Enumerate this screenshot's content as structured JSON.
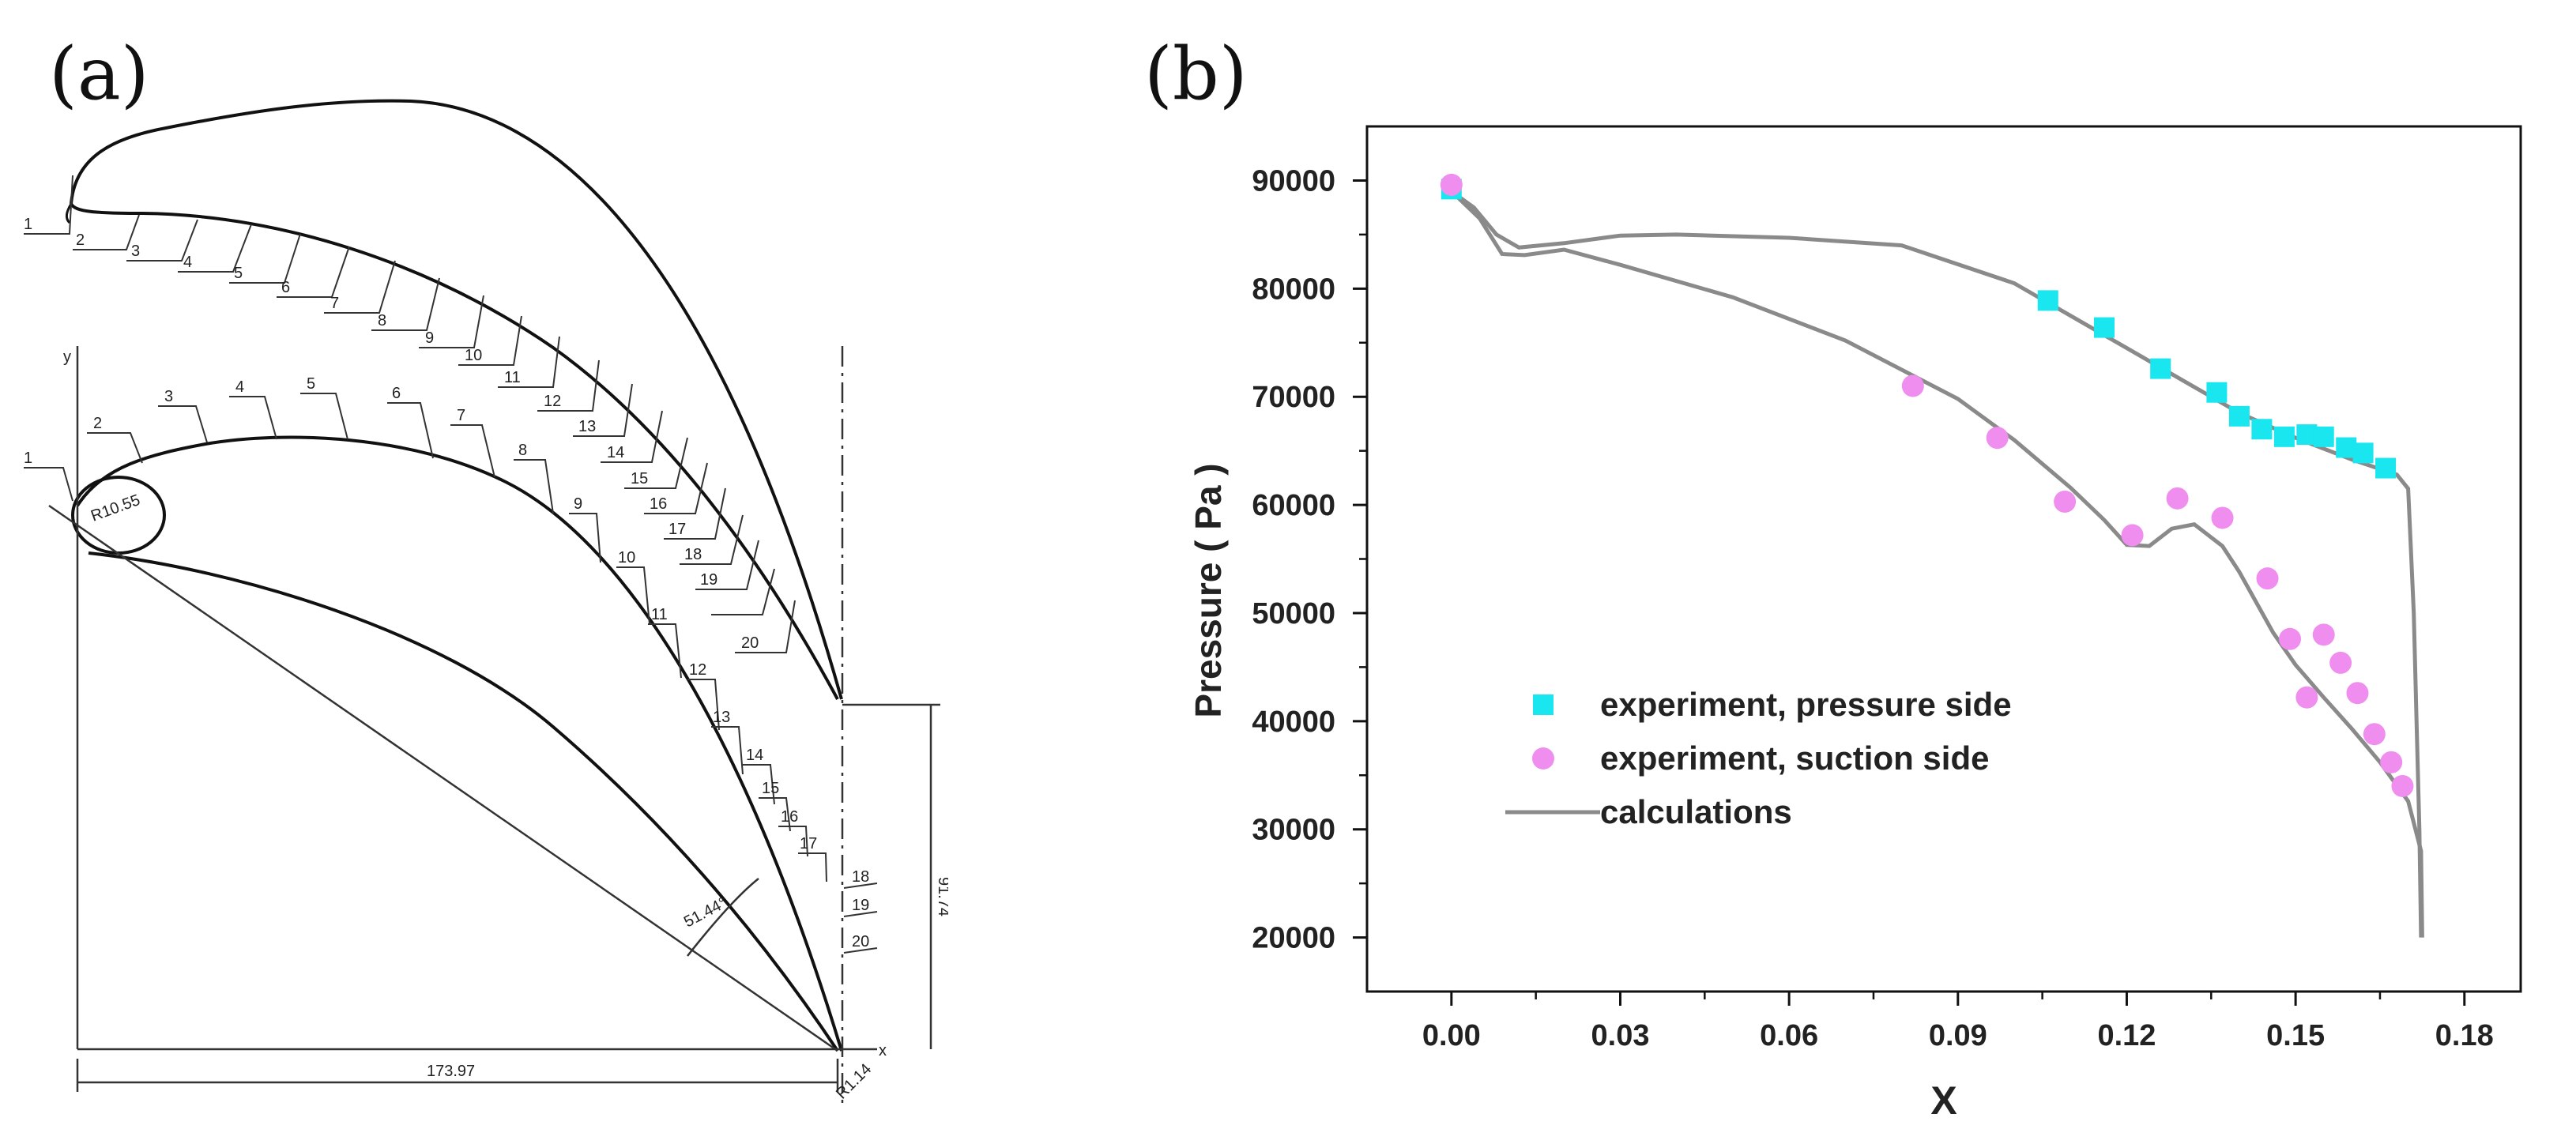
{
  "panels": {
    "a": {
      "label": "(a)"
    },
    "b": {
      "label": "(b)"
    }
  },
  "blade_drawing": {
    "upper_blade_taps": [
      "1",
      "2",
      "3",
      "4",
      "5",
      "6",
      "7",
      "8",
      "9",
      "10",
      "11",
      "12",
      "13",
      "14",
      "15",
      "16",
      "17",
      "18",
      "19",
      "20"
    ],
    "lower_blade_taps": [
      "1",
      "2",
      "3",
      "4",
      "5",
      "6",
      "7",
      "8",
      "9",
      "10",
      "11",
      "12",
      "13",
      "14",
      "15",
      "16",
      "17",
      "18",
      "19",
      "20"
    ],
    "dimensions": {
      "radius": "R10.55",
      "angle": "51.44°",
      "pitch": "91.74",
      "chord": "173.97",
      "offset": "R1.14",
      "axis_x": "x",
      "axis_y": "y"
    }
  },
  "chart_data": {
    "type": "scatter",
    "title": "",
    "xlabel": "X",
    "ylabel": "Pressure ( Pa )",
    "xlim": [
      -0.015,
      0.19
    ],
    "ylim": [
      15000,
      95000
    ],
    "x_ticks": [
      0.0,
      0.03,
      0.06,
      0.09,
      0.12,
      0.15,
      0.18
    ],
    "x_tick_labels": [
      "0.00",
      "0.03",
      "0.06",
      "0.09",
      "0.12",
      "0.15",
      "0.18"
    ],
    "y_ticks": [
      20000,
      30000,
      40000,
      50000,
      60000,
      70000,
      80000,
      90000
    ],
    "y_tick_labels": [
      "20000",
      "30000",
      "40000",
      "50000",
      "60000",
      "70000",
      "80000",
      "90000"
    ],
    "legend_position": "lower-left",
    "series": [
      {
        "name": "experiment, pressure side",
        "marker": "square",
        "color": "#19e6ee",
        "points": [
          [
            0.0,
            89200
          ],
          [
            0.106,
            78900
          ],
          [
            0.116,
            76400
          ],
          [
            0.126,
            72600
          ],
          [
            0.136,
            70400
          ],
          [
            0.14,
            68200
          ],
          [
            0.144,
            67000
          ],
          [
            0.148,
            66300
          ],
          [
            0.152,
            66500
          ],
          [
            0.155,
            66300
          ],
          [
            0.159,
            65300
          ],
          [
            0.162,
            64800
          ],
          [
            0.166,
            63400
          ]
        ]
      },
      {
        "name": "experiment, suction side",
        "marker": "circle",
        "color": "#f08ef0",
        "points": [
          [
            0.0,
            89600
          ],
          [
            0.082,
            71000
          ],
          [
            0.097,
            66200
          ],
          [
            0.109,
            60300
          ],
          [
            0.121,
            57200
          ],
          [
            0.129,
            60600
          ],
          [
            0.137,
            58800
          ],
          [
            0.145,
            53200
          ],
          [
            0.149,
            47600
          ],
          [
            0.152,
            42200
          ],
          [
            0.155,
            48000
          ],
          [
            0.158,
            45400
          ],
          [
            0.161,
            42600
          ],
          [
            0.164,
            38800
          ],
          [
            0.167,
            36200
          ],
          [
            0.169,
            34000
          ]
        ]
      },
      {
        "name": "calculations",
        "marker": "line",
        "color": "#8a8a8a",
        "upper_curve": [
          [
            0.0,
            89000
          ],
          [
            0.004,
            87500
          ],
          [
            0.008,
            85000
          ],
          [
            0.012,
            83800
          ],
          [
            0.02,
            84200
          ],
          [
            0.03,
            84900
          ],
          [
            0.04,
            85000
          ],
          [
            0.06,
            84700
          ],
          [
            0.08,
            84000
          ],
          [
            0.1,
            80500
          ],
          [
            0.12,
            74500
          ],
          [
            0.13,
            71500
          ],
          [
            0.14,
            68500
          ],
          [
            0.15,
            66200
          ],
          [
            0.16,
            64200
          ],
          [
            0.168,
            62800
          ],
          [
            0.17,
            61500
          ],
          [
            0.171,
            50000
          ],
          [
            0.1715,
            40000
          ],
          [
            0.172,
            30000
          ],
          [
            0.1723,
            20000
          ]
        ],
        "lower_curve": [
          [
            0.0,
            89000
          ],
          [
            0.005,
            86500
          ],
          [
            0.009,
            83200
          ],
          [
            0.013,
            83100
          ],
          [
            0.02,
            83600
          ],
          [
            0.03,
            82200
          ],
          [
            0.05,
            79200
          ],
          [
            0.07,
            75200
          ],
          [
            0.09,
            69800
          ],
          [
            0.1,
            66000
          ],
          [
            0.11,
            61600
          ],
          [
            0.116,
            58600
          ],
          [
            0.12,
            56300
          ],
          [
            0.124,
            56200
          ],
          [
            0.128,
            57800
          ],
          [
            0.132,
            58200
          ],
          [
            0.137,
            56200
          ],
          [
            0.14,
            53800
          ],
          [
            0.146,
            48200
          ],
          [
            0.15,
            45200
          ],
          [
            0.155,
            42200
          ],
          [
            0.16,
            39300
          ],
          [
            0.165,
            36200
          ],
          [
            0.17,
            32600
          ],
          [
            0.1723,
            28000
          ],
          [
            0.1725,
            20000
          ]
        ]
      }
    ]
  }
}
